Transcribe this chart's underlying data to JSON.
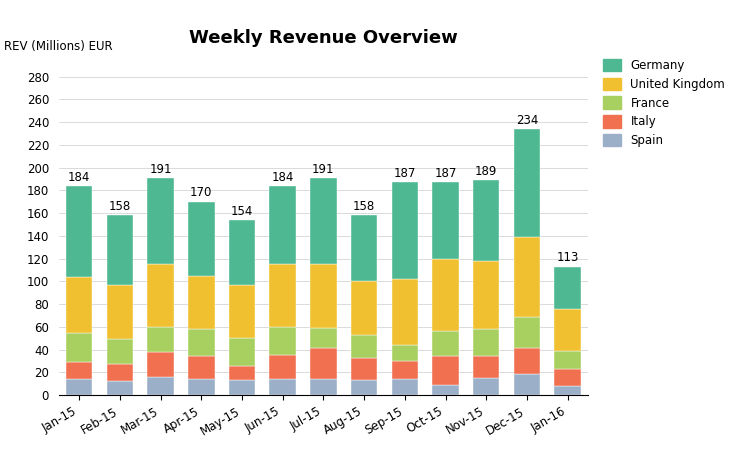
{
  "title": "Weekly Revenue Overview",
  "ylabel": "REV (Millions) EUR",
  "categories": [
    "Jan-15",
    "Feb-15",
    "Mar-15",
    "Apr-15",
    "May-15",
    "Jun-15",
    "Jul-15",
    "Aug-15",
    "Sep-15",
    "Oct-15",
    "Nov-15",
    "Dec-15",
    "Jan-16"
  ],
  "totals": [
    184,
    158,
    191,
    170,
    154,
    184,
    191,
    158,
    187,
    187,
    189,
    234,
    113
  ],
  "series": {
    "Spain": [
      14,
      12,
      16,
      14,
      13,
      14,
      14,
      13,
      14,
      9,
      15,
      19,
      8
    ],
    "Italy": [
      15,
      15,
      22,
      20,
      13,
      21,
      27,
      20,
      16,
      25,
      19,
      22,
      15
    ],
    "France": [
      26,
      22,
      22,
      24,
      24,
      25,
      18,
      20,
      14,
      22,
      24,
      28,
      16
    ],
    "United Kingdom": [
      49,
      48,
      55,
      47,
      47,
      55,
      56,
      47,
      58,
      64,
      60,
      70,
      37
    ],
    "Germany": [
      80,
      61,
      76,
      65,
      57,
      69,
      76,
      58,
      85,
      67,
      71,
      95,
      37
    ]
  },
  "colors": {
    "Germany": "#4db891",
    "United Kingdom": "#f0c030",
    "France": "#a8d060",
    "Italy": "#f07050",
    "Spain": "#9bb0c8"
  },
  "ylim": [
    0,
    300
  ],
  "yticks": [
    0,
    20,
    40,
    60,
    80,
    100,
    120,
    140,
    160,
    180,
    200,
    220,
    240,
    260,
    280
  ],
  "legend_order": [
    "Germany",
    "United Kingdom",
    "France",
    "Italy",
    "Spain"
  ],
  "background_color": "#ffffff",
  "title_fontsize": 13,
  "label_fontsize": 8.5,
  "tick_fontsize": 8.5
}
